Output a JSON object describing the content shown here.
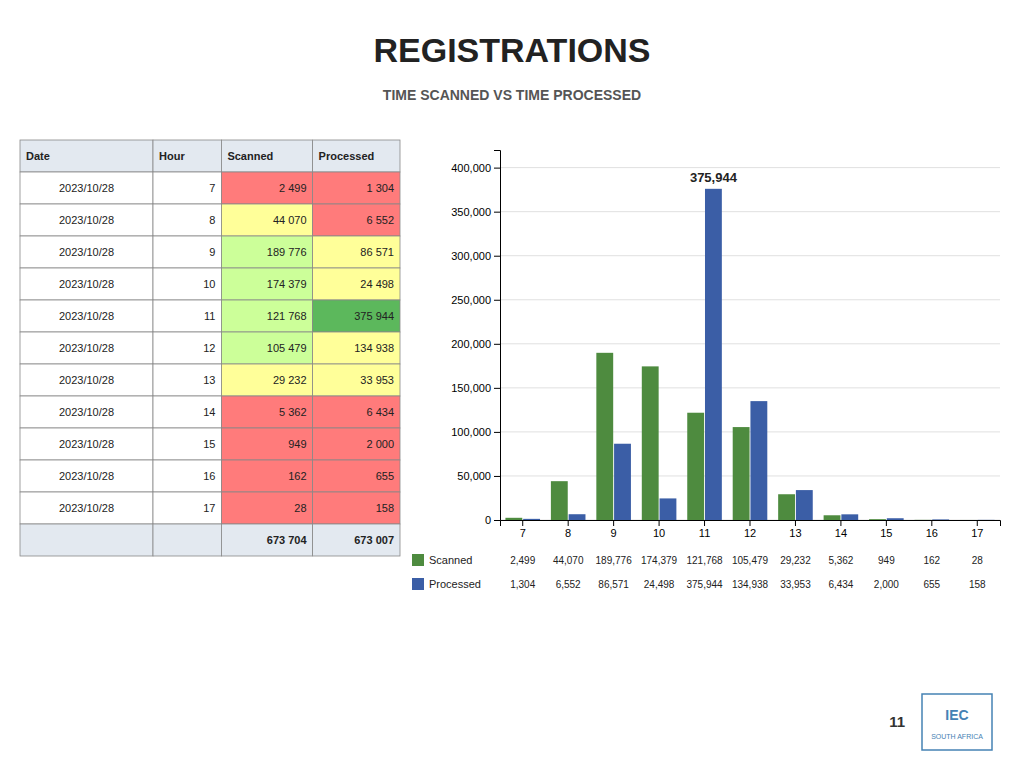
{
  "chart_data": [
    {
      "type": "bar",
      "title": "REGISTRATIONS",
      "subtitle": "TIME SCANNED VS TIME PROCESSED",
      "categories": [
        "7",
        "8",
        "9",
        "10",
        "11",
        "12",
        "13",
        "14",
        "15",
        "16",
        "17"
      ],
      "series": [
        {
          "name": "Scanned",
          "color": "#4E8B3F",
          "values": [
            2499,
            44070,
            189776,
            174379,
            121768,
            105479,
            29232,
            5362,
            949,
            162,
            28
          ],
          "value_labels": [
            "2,499",
            "44,070",
            "189,776",
            "174,379",
            "121,768",
            "105,479",
            "29,232",
            "5,362",
            "949",
            "162",
            "28"
          ]
        },
        {
          "name": "Processed",
          "color": "#3B5EA6",
          "values": [
            1304,
            6552,
            86571,
            24498,
            375944,
            134938,
            33953,
            6434,
            2000,
            655,
            158
          ],
          "value_labels": [
            "1,304",
            "6,552",
            "86,571",
            "24,498",
            "375,944",
            "134,938",
            "33,953",
            "6,434",
            "2,000",
            "655",
            "158"
          ]
        }
      ],
      "ylim": [
        0,
        420000
      ],
      "yticks": [
        0,
        {
          "value": 50000,
          "label": "50,000"
        },
        {
          "value": 100000,
          "label": "100,000"
        },
        {
          "value": 150000,
          "label": "150,000"
        },
        {
          "value": 200000,
          "label": "200,000"
        },
        {
          "value": 250000,
          "label": "250,000"
        },
        {
          "value": 300000,
          "label": "300,000"
        },
        {
          "value": 350000,
          "label": "350,000"
        },
        {
          "value": 400000,
          "label": "400,000"
        }
      ],
      "grid": true,
      "annotations": [
        {
          "text": "375,944",
          "x": "11",
          "series": "Processed",
          "y": 375944
        }
      ]
    },
    {
      "type": "table",
      "columns": [
        "Date",
        "Hour",
        "Scanned",
        "Processed"
      ],
      "dates": [
        "2023/10/28",
        "2023/10/28",
        "2023/10/28",
        "2023/10/28",
        "2023/10/28",
        "2023/10/28",
        "2023/10/28",
        "2023/10/28",
        "2023/10/28",
        "2023/10/28",
        "2023/10/28"
      ],
      "categories": [
        "7",
        "8",
        "9",
        "10",
        "11",
        "12",
        "13",
        "14",
        "15",
        "16",
        "17"
      ],
      "series": [
        {
          "name": "Scanned",
          "values": [
            2499,
            44070,
            189776,
            174379,
            121768,
            105479,
            29232,
            5362,
            949,
            162,
            28
          ],
          "value_labels": [
            "2 499",
            "44 070",
            "189 776",
            "174 379",
            "121 768",
            "105 479",
            "29 232",
            "5 362",
            "949",
            "162",
            "28"
          ],
          "colors": [
            "#FF7B7B",
            "#FFFF99",
            "#CCFF99",
            "#CCFF99",
            "#CCFF99",
            "#CCFF99",
            "#FFFF99",
            "#FF7B7B",
            "#FF7B7B",
            "#FF7B7B",
            "#FF7B7B"
          ],
          "total": 673704,
          "total_label": "673 704"
        },
        {
          "name": "Processed",
          "values": [
            1304,
            6552,
            86571,
            24498,
            375944,
            134938,
            33953,
            6434,
            2000,
            655,
            158
          ],
          "value_labels": [
            "1 304",
            "6 552",
            "86 571",
            "24 498",
            "375 944",
            "134 938",
            "33 953",
            "6 434",
            "2 000",
            "655",
            "158"
          ],
          "colors": [
            "#FF7B7B",
            "#FF7B7B",
            "#FFFF99",
            "#FFFF99",
            "#5CB85C",
            "#FFFF99",
            "#FFFF99",
            "#FF7B7B",
            "#FF7B7B",
            "#FF7B7B",
            "#FF7B7B"
          ],
          "total": 673007,
          "total_label": "673 007"
        }
      ]
    }
  ],
  "page_number": "11",
  "logo": [
    "IEC",
    "SOUTH AFRICA"
  ]
}
